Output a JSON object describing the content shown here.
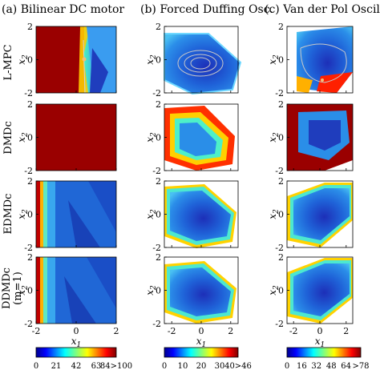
{
  "figure": {
    "columns": [
      {
        "key": "dc",
        "title": "(a) Bilinear DC motor"
      },
      {
        "key": "duff",
        "title": "(b) Forced Duffing Osc."
      },
      {
        "key": "vdp",
        "title": "(c) Van der Pol Oscillator"
      }
    ],
    "rows": [
      {
        "key": "lmpc",
        "label": "L-MPC"
      },
      {
        "key": "dmdc",
        "label": "DMDc"
      },
      {
        "key": "edmdc",
        "label": "EDMDc"
      },
      {
        "key": "ddmdc",
        "label": "DDMDc",
        "label2": "(m=1)"
      }
    ],
    "x_label": "x",
    "x_sub": "1",
    "y_label": "x",
    "y_sub": "2"
  },
  "chart_data": [
    {
      "type": "heatmap",
      "title": "(a) Bilinear DC motor",
      "xlim": [
        -2,
        2
      ],
      "ylim": [
        -2,
        2
      ],
      "xticks": [
        "-2",
        "0",
        "2"
      ],
      "yticks": [
        "2",
        "0",
        "-2"
      ],
      "colorbar": {
        "ticks": [
          "0",
          "21",
          "42",
          "63",
          "84>100"
        ],
        "range": [
          0,
          100
        ]
      }
    },
    {
      "type": "heatmap",
      "title": "(b) Forced Duffing Osc.",
      "xlim": [
        -2.5,
        2.5
      ],
      "ylim": [
        -2,
        2
      ],
      "xticks": [
        "-2",
        "0",
        "2"
      ],
      "yticks": [
        "2",
        "0",
        "-2"
      ],
      "colorbar": {
        "ticks": [
          "0",
          "10",
          "20",
          "30",
          "40>46"
        ],
        "range": [
          0,
          46
        ]
      }
    },
    {
      "type": "heatmap",
      "title": "(c) Van der Pol Oscillator",
      "xlim": [
        -2.5,
        2.5
      ],
      "ylim": [
        -2,
        2
      ],
      "xticks": [
        "-2",
        "0",
        "2"
      ],
      "yticks": [
        "2",
        "0",
        "-2"
      ],
      "colorbar": {
        "ticks": [
          "0",
          "16",
          "32",
          "48",
          "64",
          ">78"
        ],
        "range": [
          0,
          78
        ]
      }
    }
  ]
}
